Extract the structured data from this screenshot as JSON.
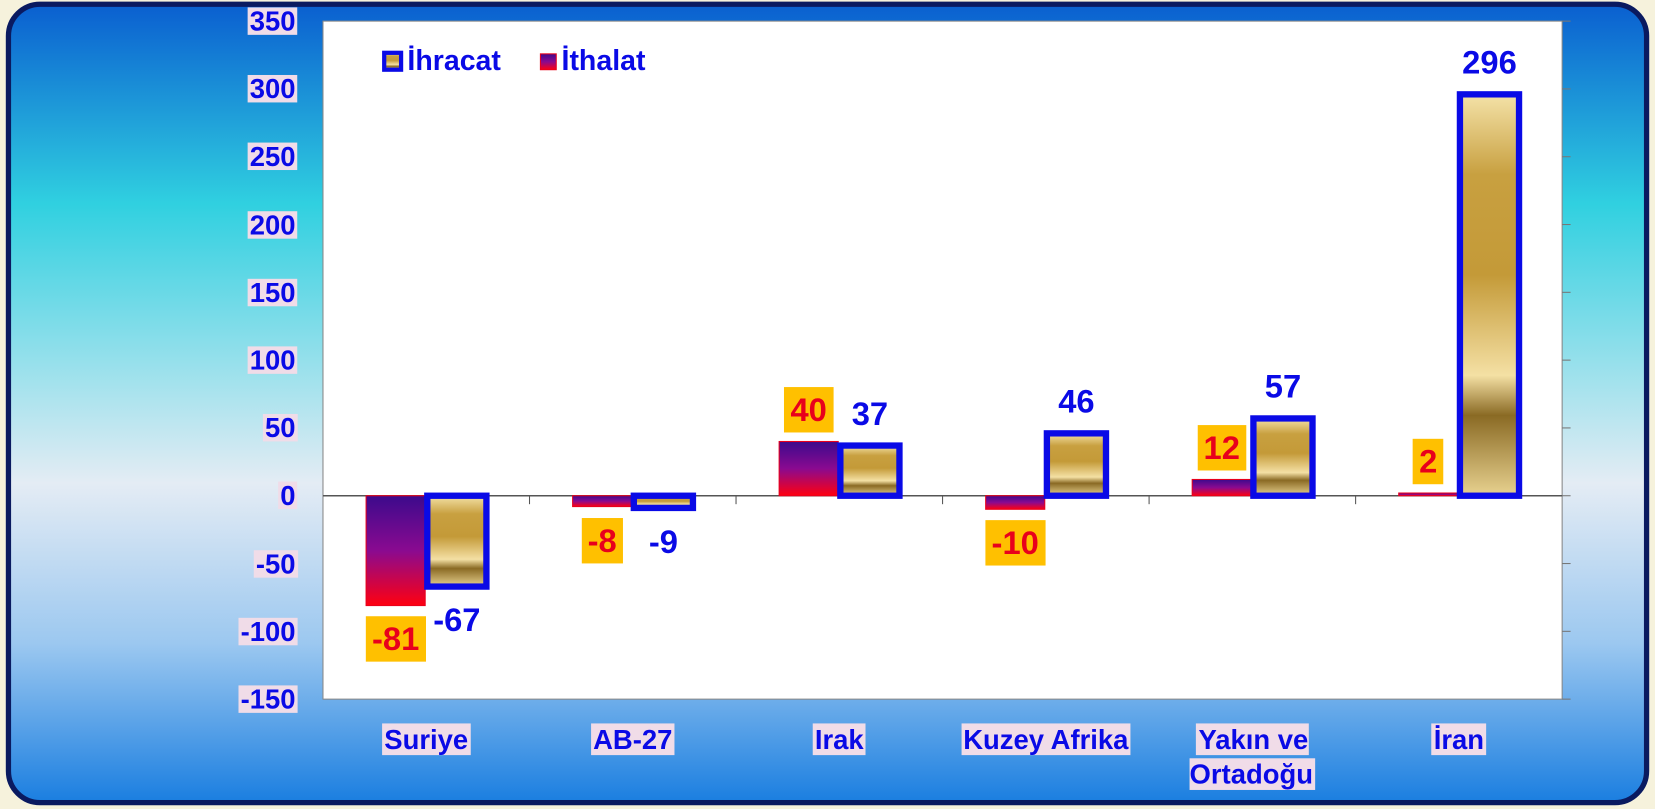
{
  "chart_data": {
    "type": "bar",
    "categories": [
      "Suriye",
      "AB-27",
      "Irak",
      "Kuzey Afrika",
      "Yakın ve Ortadoğu",
      "İran"
    ],
    "series": [
      {
        "name": "İhracat",
        "color": "#0a0ae6",
        "values": [
          -67,
          -9,
          37,
          46,
          57,
          296
        ]
      },
      {
        "name": "İthalat",
        "color": "#e8001c",
        "values": [
          -81,
          -8,
          40,
          -10,
          12,
          2
        ]
      }
    ],
    "ylim": [
      -150,
      350
    ],
    "yticks": [
      -150,
      -100,
      -50,
      0,
      50,
      100,
      150,
      200,
      250,
      300,
      350
    ],
    "legend": "top-left"
  }
}
